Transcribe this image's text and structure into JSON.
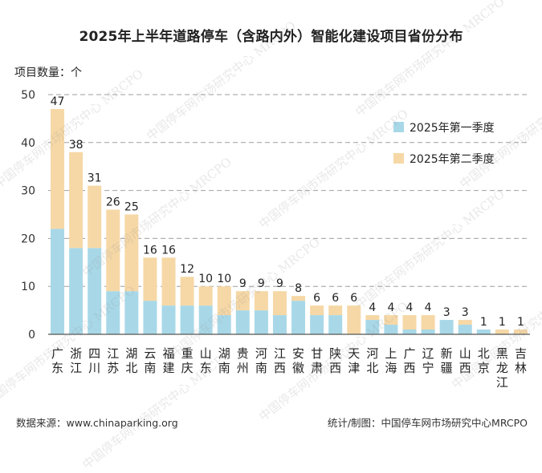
{
  "page": {
    "title": "2025年上半年道路停车（含路内外）智能化建设项目省份分布",
    "unit_label": "项目数量：个",
    "source": "数据来源：www.chinaparking.org",
    "credit": "统计/制图：中国停车网市场研究中心MRCPO",
    "watermark": "中国停车网市场研究中心 MRCPO"
  },
  "colors": {
    "q1": "#a8d8e8",
    "q2": "#f6d8a6",
    "grid": "#9e9e9e",
    "axis": "#555555"
  },
  "chart_data": {
    "type": "bar",
    "stacked": true,
    "title": "2025年上半年道路停车（含路内外）智能化建设项目省份分布",
    "ylabel": "项目数量：个",
    "ylim": [
      0,
      50
    ],
    "yticks": [
      0,
      10,
      20,
      30,
      40,
      50
    ],
    "grid": true,
    "legend_position": "top-right",
    "categories": [
      "广东",
      "浙江",
      "四川",
      "江苏",
      "湖北",
      "云南",
      "福建",
      "重庆",
      "山东",
      "湖南",
      "贵州",
      "河南",
      "江西",
      "安徽",
      "甘肃",
      "陕西",
      "天津",
      "河北",
      "上海",
      "广西",
      "辽宁",
      "新疆",
      "山西",
      "北京",
      "黑龙江",
      "吉林"
    ],
    "series": [
      {
        "name": "2025年第一季度",
        "values": [
          22,
          18,
          18,
          9,
          9,
          7,
          6,
          6,
          6,
          4,
          5,
          5,
          4,
          7,
          4,
          4,
          0,
          3,
          2,
          1,
          1,
          3,
          2,
          1,
          0,
          0
        ]
      },
      {
        "name": "2025年第二季度",
        "values": [
          25,
          20,
          13,
          17,
          16,
          9,
          10,
          6,
          4,
          6,
          4,
          4,
          5,
          1,
          2,
          2,
          6,
          1,
          2,
          3,
          3,
          0,
          1,
          0,
          1,
          1
        ]
      }
    ],
    "totals": [
      47,
      38,
      31,
      26,
      25,
      16,
      16,
      12,
      10,
      10,
      9,
      9,
      9,
      8,
      6,
      6,
      6,
      4,
      4,
      4,
      4,
      3,
      3,
      1,
      1,
      1
    ]
  }
}
